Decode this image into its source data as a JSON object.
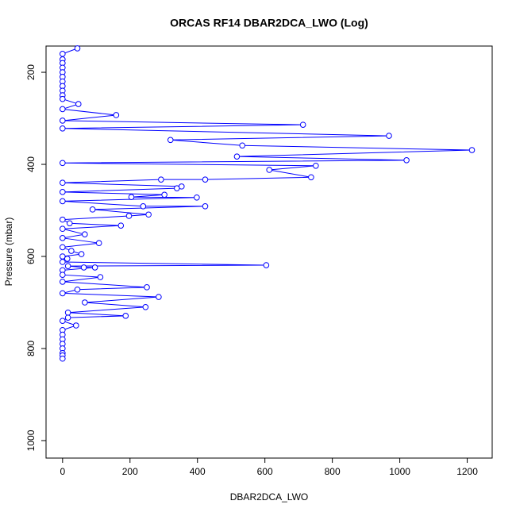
{
  "chart_data": {
    "type": "line",
    "title": "ORCAS RF14 DBAR2DCA_LWO (Log)",
    "x_label": "DBAR2DCA_LWO",
    "y_label": "Pressure (mbar)",
    "color": "#0000ff",
    "x": [
      44,
      0,
      0,
      0,
      0,
      0,
      0,
      0,
      0,
      0,
      0,
      0,
      47,
      0,
      159,
      0,
      713,
      0,
      968,
      320,
      533,
      1214,
      517,
      1020,
      0,
      751,
      613,
      737,
      423,
      292,
      0,
      353,
      339,
      0,
      302,
      204,
      398,
      0,
      239,
      423,
      89,
      255,
      197,
      0,
      21,
      173,
      0,
      66,
      0,
      108,
      0,
      26,
      56,
      0,
      14,
      0,
      604,
      16,
      63,
      96,
      0,
      0,
      112,
      0,
      250,
      44,
      0,
      285,
      66,
      246,
      16,
      187,
      16,
      0,
      40,
      0,
      0,
      0,
      0,
      0,
      0,
      0,
      0
    ],
    "values": [
      148,
      160,
      172,
      180,
      190,
      200,
      210,
      220,
      230,
      240,
      250,
      258,
      269,
      280,
      293,
      305,
      314,
      322,
      338,
      347,
      359,
      369,
      383,
      391,
      397,
      403,
      412,
      428,
      433,
      433,
      440,
      448,
      452,
      460,
      466,
      471,
      472,
      480,
      491,
      491,
      498,
      509,
      512,
      520,
      528,
      533,
      540,
      552,
      560,
      571,
      580,
      588,
      595,
      600,
      605,
      612,
      619,
      621,
      624,
      624,
      630,
      640,
      645,
      655,
      667,
      672,
      680,
      688,
      700,
      710,
      722,
      729,
      733,
      740,
      750,
      760,
      770,
      780,
      790,
      800,
      810,
      815,
      822
    ],
    "xlim": [
      -49,
      1274
    ],
    "ylim": [
      1038,
      143
    ],
    "xticks": [
      0,
      200,
      400,
      600,
      800,
      1000,
      1200
    ],
    "yticks": [
      200,
      400,
      600,
      800,
      1000
    ]
  }
}
